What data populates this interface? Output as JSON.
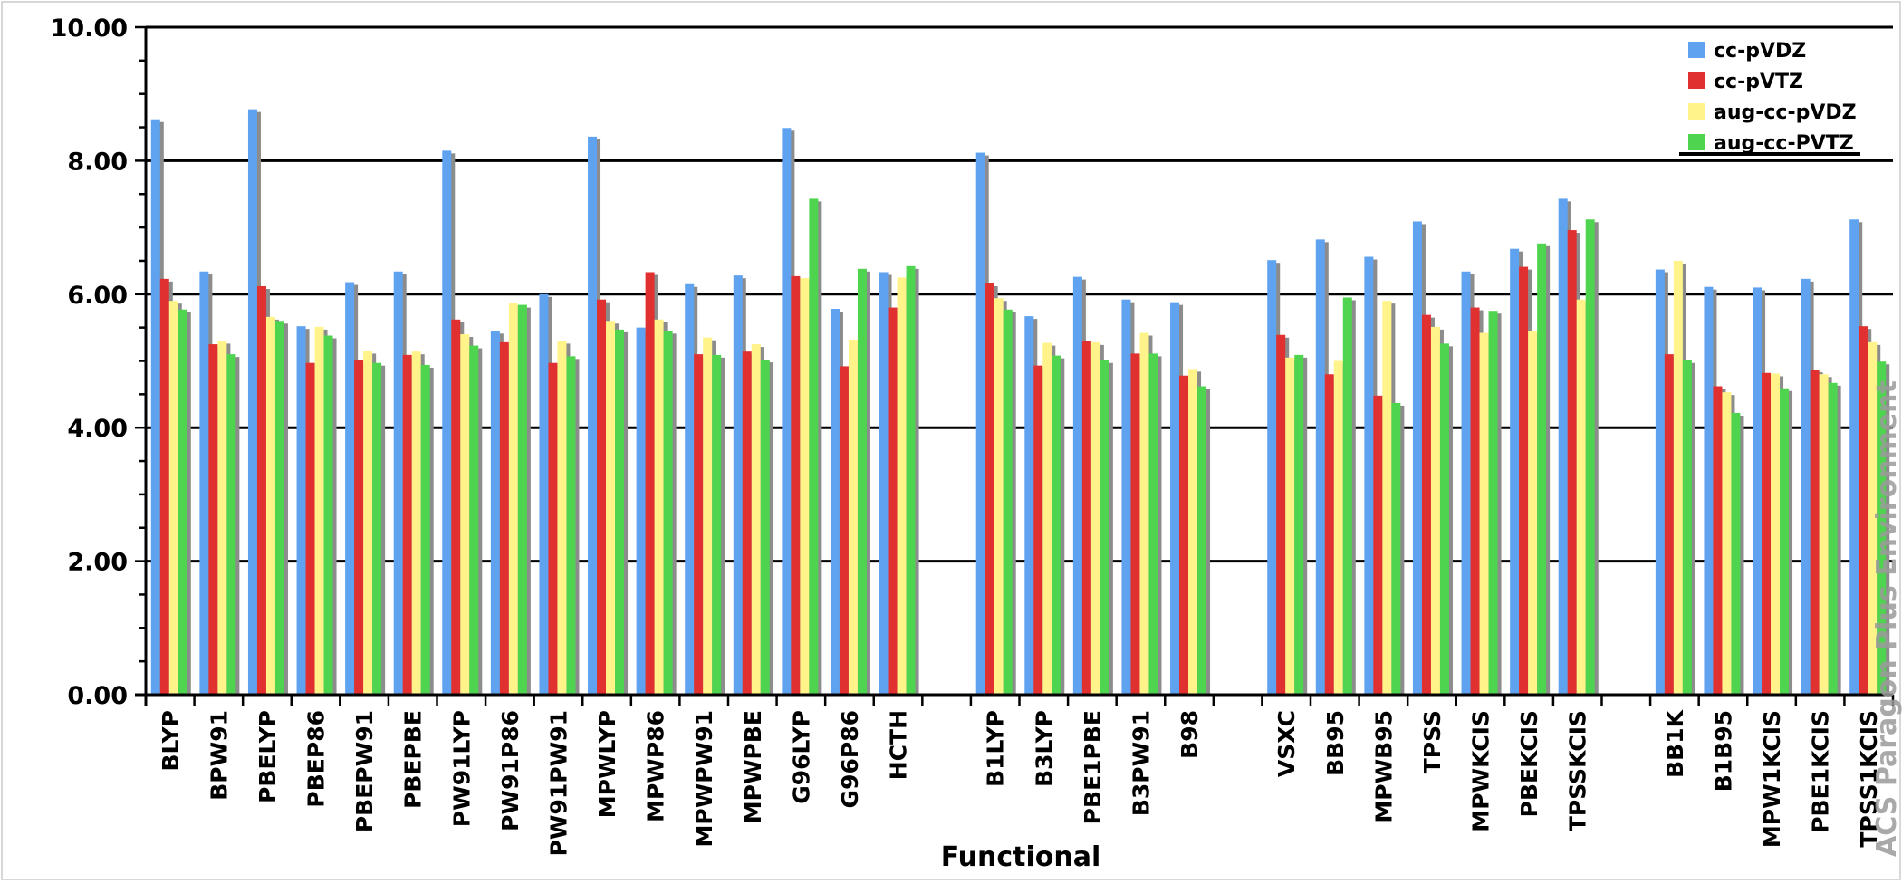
{
  "watermark": "ACS Paragon Plus Environment",
  "chart_data": {
    "type": "bar",
    "title": "",
    "xlabel": "Functional",
    "ylabel": "",
    "ylim": [
      0,
      10
    ],
    "yticks": [
      "0.00",
      "2.00",
      "4.00",
      "6.00",
      "8.00",
      "10.00"
    ],
    "grid": true,
    "legend_position": "top-right",
    "categories": [
      "BLYP",
      "BPW91",
      "PBELYP",
      "PBEP86",
      "PBEPW91",
      "PBEPBE",
      "PW91LYP",
      "PW91P86",
      "PW91PW91",
      "MPWLYP",
      "MPWP86",
      "MPWPW91",
      "MPWPBE",
      "G96LYP",
      "G96P86",
      "HCTH",
      "",
      "B1LYP",
      "B3LYP",
      "PBE1PBE",
      "B3PW91",
      "B98",
      "",
      "VSXC",
      "BB95",
      "MPWB95",
      "TPSS",
      "MPWKCIS",
      "PBEKCIS",
      "TPSSKCIS",
      "",
      "BB1K",
      "B1B95",
      "MPW1KCIS",
      "PBE1KCIS",
      "TPSS1KCIS"
    ],
    "series": [
      {
        "name": "cc-pVDZ",
        "color": "#5ea2f0",
        "values": [
          8.62,
          6.34,
          8.77,
          5.52,
          6.18,
          6.34,
          8.15,
          5.45,
          6.0,
          8.36,
          5.5,
          6.15,
          6.28,
          8.49,
          5.78,
          6.33,
          null,
          8.12,
          5.67,
          6.26,
          5.92,
          5.88,
          null,
          6.51,
          6.82,
          6.56,
          7.09,
          6.34,
          6.68,
          7.43,
          null,
          6.37,
          6.11,
          6.1,
          6.23,
          7.12
        ]
      },
      {
        "name": "cc-pVTZ",
        "color": "#e03030",
        "values": [
          6.23,
          5.25,
          6.12,
          4.97,
          5.02,
          5.09,
          5.62,
          5.28,
          4.97,
          5.92,
          6.33,
          5.1,
          5.14,
          6.27,
          4.92,
          5.8,
          null,
          6.16,
          4.93,
          5.3,
          5.11,
          4.78,
          null,
          5.39,
          4.8,
          4.48,
          5.69,
          5.8,
          6.41,
          6.96,
          null,
          5.1,
          4.62,
          4.82,
          4.87,
          5.52
        ]
      },
      {
        "name": "aug-cc-pVDZ",
        "color": "#fff389",
        "values": [
          5.9,
          5.3,
          5.66,
          5.51,
          5.15,
          5.14,
          5.4,
          5.87,
          5.3,
          5.6,
          5.62,
          5.35,
          5.25,
          6.24,
          5.32,
          6.25,
          null,
          5.94,
          5.27,
          5.28,
          5.42,
          4.88,
          null,
          5.05,
          5.0,
          5.9,
          5.51,
          5.42,
          5.45,
          5.92,
          null,
          6.5,
          4.53,
          4.81,
          4.8,
          5.28
        ]
      },
      {
        "name": "aug-cc-PVTZ",
        "color": "#4fd44f",
        "values": [
          5.77,
          5.1,
          5.6,
          5.38,
          4.97,
          4.94,
          5.23,
          5.84,
          5.07,
          5.47,
          5.45,
          5.09,
          5.02,
          7.43,
          6.38,
          6.42,
          null,
          5.77,
          5.08,
          5.01,
          5.11,
          4.62,
          null,
          5.09,
          5.95,
          4.37,
          5.26,
          5.75,
          6.76,
          7.12,
          null,
          5.01,
          4.22,
          4.59,
          4.67,
          4.99
        ]
      }
    ]
  }
}
